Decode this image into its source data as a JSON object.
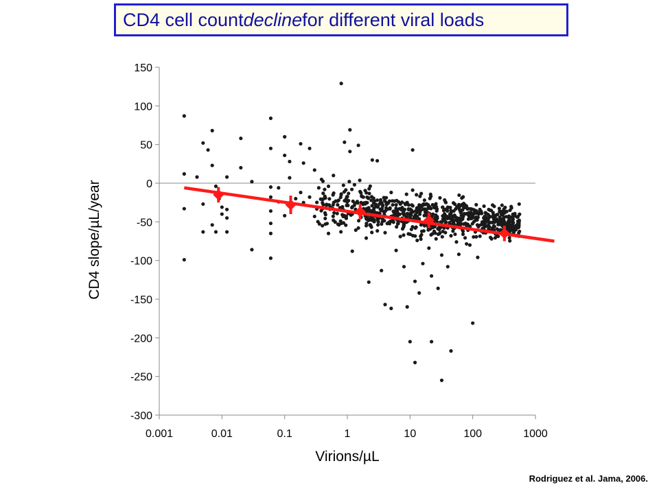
{
  "title": {
    "before": "CD4 cell count ",
    "emph": "decline",
    "after": " for different viral loads"
  },
  "citation": "Rodriguez et al. Jama, 2006.",
  "colors": {
    "points": "#1a1a1a",
    "fit": "#ff1a1a",
    "title_text": "#1010a0",
    "title_border": "#1f1fd1"
  },
  "chart_data": {
    "type": "scatter",
    "xlabel": "Virions/µL",
    "ylabel": "CD4 slope/µL/year",
    "x_scale": "log",
    "xlim": [
      0.001,
      1000
    ],
    "ylim": [
      -300,
      150
    ],
    "x_ticks": [
      0.001,
      0.01,
      0.1,
      1,
      10,
      100,
      1000
    ],
    "x_tick_labels": [
      "0.001",
      "0.01",
      "0.1",
      "1",
      "10",
      "100",
      "1000"
    ],
    "y_ticks": [
      150,
      100,
      50,
      0,
      -50,
      -100,
      -150,
      -200,
      -250,
      -300
    ],
    "y_tick_labels": [
      "150",
      "100",
      "50",
      "0",
      "-50",
      "-100",
      "-150",
      "-200",
      "-250",
      "-300"
    ],
    "zero_reference_line": true,
    "scatter_points": [
      [
        0.0025,
        87
      ],
      [
        0.0025,
        12
      ],
      [
        0.0025,
        -33
      ],
      [
        0.0025,
        -99
      ],
      [
        0.004,
        8
      ],
      [
        0.005,
        52
      ],
      [
        0.005,
        -27
      ],
      [
        0.005,
        -63
      ],
      [
        0.007,
        68
      ],
      [
        0.007,
        23
      ],
      [
        0.007,
        -54
      ],
      [
        0.006,
        43
      ],
      [
        0.008,
        -4
      ],
      [
        0.009,
        -20
      ],
      [
        0.01,
        -31
      ],
      [
        0.01,
        -40
      ],
      [
        0.008,
        -63
      ],
      [
        0.012,
        8
      ],
      [
        0.012,
        -34
      ],
      [
        0.012,
        -45
      ],
      [
        0.012,
        -63
      ],
      [
        0.02,
        58
      ],
      [
        0.02,
        20
      ],
      [
        0.03,
        2
      ],
      [
        0.03,
        -86
      ],
      [
        0.06,
        84
      ],
      [
        0.06,
        45
      ],
      [
        0.06,
        -5
      ],
      [
        0.06,
        -18
      ],
      [
        0.06,
        -36
      ],
      [
        0.06,
        -52
      ],
      [
        0.06,
        -65
      ],
      [
        0.06,
        -97
      ],
      [
        0.08,
        -6
      ],
      [
        0.08,
        -24
      ],
      [
        0.1,
        60
      ],
      [
        0.1,
        36
      ],
      [
        0.1,
        -42
      ],
      [
        0.12,
        28
      ],
      [
        0.12,
        7
      ],
      [
        0.15,
        -20
      ],
      [
        0.18,
        51
      ],
      [
        0.18,
        -12
      ],
      [
        0.2,
        26
      ],
      [
        0.2,
        -25
      ],
      [
        0.25,
        45
      ],
      [
        0.25,
        -18
      ],
      [
        0.3,
        17
      ],
      [
        0.3,
        -43
      ],
      [
        0.35,
        -6
      ],
      [
        0.4,
        -33
      ],
      [
        0.4,
        -55
      ],
      [
        0.5,
        -65
      ],
      [
        0.5,
        -4
      ],
      [
        0.6,
        -48
      ],
      [
        0.6,
        10
      ],
      [
        0.7,
        -28
      ],
      [
        0.8,
        129
      ],
      [
        0.8,
        -14
      ],
      [
        0.8,
        -52
      ],
      [
        0.9,
        53
      ],
      [
        1.1,
        69
      ],
      [
        1.1,
        41
      ],
      [
        1.2,
        -40
      ],
      [
        1.2,
        -88
      ],
      [
        1.3,
        -2
      ],
      [
        1.5,
        49
      ],
      [
        1.5,
        -58
      ],
      [
        1.7,
        -34
      ],
      [
        1.8,
        -18
      ],
      [
        2,
        -71
      ],
      [
        2.2,
        -128
      ],
      [
        2.5,
        30
      ],
      [
        2.5,
        -48
      ],
      [
        3,
        29
      ],
      [
        3,
        -22
      ],
      [
        3.5,
        -113
      ],
      [
        3.5,
        -35
      ],
      [
        4,
        -157
      ],
      [
        4,
        -64
      ],
      [
        5,
        -43
      ],
      [
        5,
        -162
      ],
      [
        5,
        -12
      ],
      [
        6,
        -87
      ],
      [
        6,
        -28
      ],
      [
        7,
        -69
      ],
      [
        8,
        -108
      ],
      [
        8,
        -47
      ],
      [
        9,
        -160
      ],
      [
        9,
        -25
      ],
      [
        10,
        -205
      ],
      [
        10,
        -66
      ],
      [
        11,
        43
      ],
      [
        11,
        -9
      ],
      [
        12,
        -232
      ],
      [
        12,
        -127
      ],
      [
        13,
        -74
      ],
      [
        13,
        -43
      ],
      [
        14,
        -142
      ],
      [
        15,
        -54
      ],
      [
        16,
        -104
      ],
      [
        17,
        -22
      ],
      [
        18,
        -36
      ],
      [
        20,
        -84
      ],
      [
        20,
        -59
      ],
      [
        22,
        -205
      ],
      [
        22,
        -120
      ],
      [
        24,
        -47
      ],
      [
        26,
        -72
      ],
      [
        28,
        -136
      ],
      [
        30,
        -19
      ],
      [
        32,
        -255
      ],
      [
        32,
        -93
      ],
      [
        35,
        -58
      ],
      [
        40,
        -108
      ],
      [
        40,
        -31
      ],
      [
        45,
        -217
      ],
      [
        45,
        -68
      ],
      [
        50,
        -36
      ],
      [
        55,
        -76
      ],
      [
        60,
        -49
      ],
      [
        60,
        -92
      ],
      [
        70,
        -66
      ],
      [
        75,
        -28
      ],
      [
        80,
        -55
      ],
      [
        90,
        -80
      ],
      [
        100,
        -43
      ],
      [
        100,
        -181
      ],
      [
        110,
        -63
      ],
      [
        120,
        -96
      ],
      [
        130,
        -34
      ],
      [
        150,
        -58
      ],
      [
        170,
        -45
      ],
      [
        200,
        -72
      ],
      [
        220,
        -30
      ],
      [
        250,
        -50
      ],
      [
        300,
        -40
      ],
      [
        400,
        -55
      ],
      [
        550,
        -27
      ],
      [
        550,
        -48
      ]
    ],
    "series": [
      {
        "type": "points_with_error_bars",
        "x": [
          0.0088,
          0.125,
          1.6,
          20,
          320
        ],
        "y": [
          -15,
          -28,
          -37,
          -48,
          -65
        ],
        "error": [
          10,
          12,
          10,
          10,
          10
        ]
      },
      {
        "type": "fit_line",
        "x": [
          0.0025,
          2000
        ],
        "y": [
          -6,
          -75
        ]
      }
    ]
  }
}
